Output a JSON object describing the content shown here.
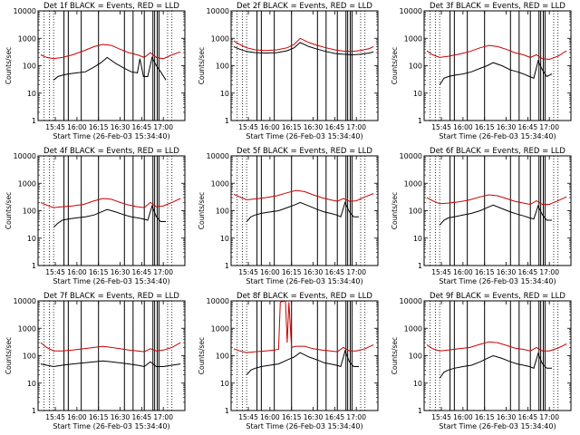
{
  "chart_data": [
    {
      "type": "line",
      "title": "Det 1f BLACK = Events, RED = LLD",
      "xlabel": "Start Time (26-Feb-03 15:34:40)",
      "ylabel": "Counts/sec",
      "yscale": "log",
      "ylim": [
        1,
        10000
      ],
      "yticks": [
        "1",
        "10",
        "100",
        "1000",
        "10000"
      ],
      "xticks": [
        "15:45",
        "16:00",
        "16:15",
        "16:30",
        "16:45",
        "17:00"
      ],
      "series": [
        {
          "color": "#000000",
          "x": [
            15.73,
            15.78,
            15.83,
            15.9,
            16.0,
            16.1,
            16.2,
            16.28,
            16.35,
            16.45,
            16.55,
            16.63,
            16.7,
            16.73,
            16.77,
            16.82,
            16.87,
            16.92,
            16.97,
            17.03
          ],
          "y": [
            30,
            40,
            45,
            50,
            55,
            60,
            90,
            130,
            200,
            120,
            80,
            60,
            55,
            180,
            40,
            40,
            200,
            100,
            60,
            30
          ]
        },
        {
          "color": "#cc0000",
          "x": [
            15.58,
            15.65,
            15.73,
            15.83,
            15.95,
            16.08,
            16.2,
            16.3,
            16.4,
            16.5,
            16.6,
            16.7,
            16.78,
            16.85,
            16.92,
            17.0,
            17.1,
            17.2
          ],
          "y": [
            250,
            200,
            180,
            200,
            250,
            350,
            500,
            600,
            550,
            400,
            300,
            250,
            200,
            300,
            200,
            180,
            250,
            320
          ]
        }
      ]
    },
    {
      "type": "line",
      "title": "Det 2f BLACK = Events, RED = LLD",
      "xlabel": "Start Time (26-Feb-03 15:34:40)",
      "ylabel": "Counts/sec",
      "yscale": "log",
      "ylim": [
        1,
        10000
      ],
      "yticks": [
        "1",
        "10",
        "100",
        "1000",
        "10000"
      ],
      "xticks": [
        "15:45",
        "16:00",
        "16:15",
        "16:30",
        "16:45",
        "17:00"
      ],
      "series": [
        {
          "color": "#000000",
          "x": [
            15.58,
            15.65,
            15.73,
            15.83,
            15.95,
            16.08,
            16.2,
            16.28,
            16.35,
            16.45,
            16.55,
            16.65,
            16.75,
            16.85,
            16.95,
            17.05,
            17.15,
            17.2
          ],
          "y": [
            500,
            400,
            330,
            300,
            290,
            300,
            350,
            450,
            700,
            500,
            400,
            330,
            280,
            260,
            250,
            260,
            290,
            320
          ]
        },
        {
          "color": "#cc0000",
          "x": [
            15.58,
            15.65,
            15.73,
            15.83,
            15.95,
            16.08,
            16.2,
            16.28,
            16.35,
            16.45,
            16.55,
            16.65,
            16.75,
            16.85,
            16.95,
            17.05,
            17.15,
            17.2
          ],
          "y": [
            800,
            600,
            450,
            380,
            360,
            380,
            450,
            600,
            1000,
            700,
            550,
            450,
            380,
            340,
            330,
            360,
            420,
            500
          ]
        }
      ]
    },
    {
      "type": "line",
      "title": "Det 3f BLACK = Events, RED = LLD",
      "xlabel": "Start Time (26-Feb-03 15:34:40)",
      "ylabel": "Counts/sec",
      "yscale": "log",
      "ylim": [
        1,
        10000
      ],
      "yticks": [
        "1",
        "10",
        "100",
        "1000",
        "10000"
      ],
      "xticks": [
        "15:45",
        "16:00",
        "16:15",
        "16:30",
        "16:45",
        "17:00"
      ],
      "series": [
        {
          "color": "#000000",
          "x": [
            15.73,
            15.78,
            15.83,
            15.9,
            16.0,
            16.1,
            16.2,
            16.28,
            16.35,
            16.45,
            16.55,
            16.63,
            16.7,
            16.77,
            16.82,
            16.87,
            16.92,
            16.97,
            17.03
          ],
          "y": [
            20,
            35,
            40,
            45,
            50,
            60,
            80,
            100,
            130,
            100,
            70,
            60,
            50,
            40,
            35,
            150,
            70,
            40,
            50
          ]
        },
        {
          "color": "#cc0000",
          "x": [
            15.58,
            15.65,
            15.73,
            15.83,
            15.95,
            16.08,
            16.2,
            16.3,
            16.4,
            16.5,
            16.6,
            16.7,
            16.78,
            16.85,
            16.92,
            17.0,
            17.1,
            17.2
          ],
          "y": [
            350,
            250,
            200,
            220,
            260,
            330,
            450,
            550,
            500,
            400,
            300,
            250,
            200,
            250,
            180,
            170,
            220,
            350
          ]
        }
      ]
    },
    {
      "type": "line",
      "title": "Det 4f BLACK = Events, RED = LLD",
      "xlabel": "Start Time (26-Feb-03 15:34:40)",
      "ylabel": "Counts/sec",
      "yscale": "log",
      "ylim": [
        1,
        10000
      ],
      "yticks": [
        "1",
        "10",
        "100",
        "1000",
        "10000"
      ],
      "xticks": [
        "15:45",
        "16:00",
        "16:15",
        "16:30",
        "16:45",
        "17:00"
      ],
      "series": [
        {
          "color": "#000000",
          "x": [
            15.73,
            15.78,
            15.83,
            15.9,
            16.0,
            16.1,
            16.2,
            16.28,
            16.35,
            16.45,
            16.55,
            16.63,
            16.7,
            16.77,
            16.82,
            16.87,
            16.92,
            16.97,
            17.03
          ],
          "y": [
            25,
            35,
            45,
            50,
            55,
            60,
            70,
            90,
            110,
            90,
            70,
            60,
            55,
            50,
            45,
            150,
            60,
            40,
            40
          ]
        },
        {
          "color": "#cc0000",
          "x": [
            15.58,
            15.65,
            15.73,
            15.83,
            15.95,
            16.08,
            16.2,
            16.3,
            16.4,
            16.5,
            16.6,
            16.7,
            16.78,
            16.85,
            16.92,
            17.0,
            17.1,
            17.2
          ],
          "y": [
            200,
            160,
            130,
            140,
            150,
            170,
            230,
            280,
            260,
            200,
            160,
            140,
            130,
            200,
            140,
            150,
            200,
            280
          ]
        }
      ]
    },
    {
      "type": "line",
      "title": "Det 5f BLACK = Events, RED = LLD",
      "xlabel": "Start Time (26-Feb-03 15:34:40)",
      "ylabel": "Counts/sec",
      "yscale": "log",
      "ylim": [
        1,
        10000
      ],
      "yticks": [
        "1",
        "10",
        "100",
        "1000",
        "10000"
      ],
      "xticks": [
        "15:45",
        "16:00",
        "16:15",
        "16:30",
        "16:45",
        "17:00"
      ],
      "series": [
        {
          "color": "#000000",
          "x": [
            15.73,
            15.78,
            15.83,
            15.9,
            16.0,
            16.1,
            16.2,
            16.28,
            16.35,
            16.45,
            16.55,
            16.63,
            16.7,
            16.77,
            16.82,
            16.87,
            16.92,
            16.97,
            17.03
          ],
          "y": [
            40,
            60,
            70,
            80,
            90,
            100,
            130,
            160,
            200,
            150,
            110,
            90,
            80,
            70,
            60,
            200,
            90,
            60,
            60
          ]
        },
        {
          "color": "#cc0000",
          "x": [
            15.58,
            15.65,
            15.73,
            15.83,
            15.95,
            16.08,
            16.2,
            16.3,
            16.4,
            16.5,
            16.6,
            16.7,
            16.78,
            16.85,
            16.92,
            17.0,
            17.1,
            17.2
          ],
          "y": [
            400,
            320,
            250,
            270,
            300,
            350,
            450,
            550,
            500,
            380,
            300,
            250,
            220,
            280,
            220,
            230,
            320,
            420
          ]
        }
      ]
    },
    {
      "type": "line",
      "title": "Det 6f BLACK = Events, RED = LLD",
      "xlabel": "Start Time (26-Feb-03 15:34:40)",
      "ylabel": "Counts/sec",
      "yscale": "log",
      "ylim": [
        1,
        10000
      ],
      "yticks": [
        "1",
        "10",
        "100",
        "1000",
        "10000"
      ],
      "xticks": [
        "15:45",
        "16:00",
        "16:15",
        "16:30",
        "16:45",
        "17:00"
      ],
      "series": [
        {
          "color": "#000000",
          "x": [
            15.73,
            15.78,
            15.83,
            15.9,
            16.0,
            16.1,
            16.2,
            16.28,
            16.35,
            16.45,
            16.55,
            16.63,
            16.7,
            16.77,
            16.82,
            16.87,
            16.92,
            16.97,
            17.03
          ],
          "y": [
            30,
            45,
            55,
            60,
            70,
            80,
            100,
            130,
            160,
            120,
            90,
            75,
            65,
            55,
            50,
            150,
            70,
            45,
            45
          ]
        },
        {
          "color": "#cc0000",
          "x": [
            15.58,
            15.65,
            15.73,
            15.83,
            15.95,
            16.08,
            16.2,
            16.3,
            16.4,
            16.5,
            16.6,
            16.7,
            16.78,
            16.85,
            16.92,
            17.0,
            17.1,
            17.2
          ],
          "y": [
            300,
            230,
            180,
            190,
            210,
            250,
            320,
            380,
            350,
            280,
            220,
            190,
            170,
            230,
            170,
            170,
            230,
            320
          ]
        }
      ]
    },
    {
      "type": "line",
      "title": "Det 7f BLACK = Events, RED = LLD",
      "xlabel": "Start Time (26-Feb-03 15:34:40)",
      "ylabel": "Counts/sec",
      "yscale": "log",
      "ylim": [
        1,
        10000
      ],
      "yticks": [
        "1",
        "10",
        "100",
        "1000",
        "10000"
      ],
      "xticks": [
        "15:45",
        "16:00",
        "16:15",
        "16:30",
        "16:45",
        "17:00"
      ],
      "series": [
        {
          "color": "#000000",
          "x": [
            15.58,
            15.65,
            15.73,
            15.83,
            15.95,
            16.08,
            16.2,
            16.3,
            16.4,
            16.5,
            16.6,
            16.7,
            16.78,
            16.85,
            16.92,
            17.0,
            17.1,
            17.2
          ],
          "y": [
            50,
            45,
            40,
            45,
            50,
            55,
            60,
            65,
            60,
            55,
            50,
            45,
            40,
            60,
            40,
            40,
            45,
            50
          ]
        },
        {
          "color": "#cc0000",
          "x": [
            15.58,
            15.65,
            15.73,
            15.83,
            15.95,
            16.08,
            16.2,
            16.3,
            16.4,
            16.5,
            16.6,
            16.7,
            16.78,
            16.85,
            16.92,
            17.0,
            17.1,
            17.2
          ],
          "y": [
            300,
            200,
            150,
            150,
            160,
            180,
            200,
            220,
            200,
            180,
            160,
            150,
            140,
            180,
            150,
            160,
            200,
            300
          ]
        }
      ]
    },
    {
      "type": "line",
      "title": "Det 8f BLACK = Events, RED = LLD",
      "xlabel": "Start Time (26-Feb-03 15:34:40)",
      "ylabel": "Counts/sec",
      "yscale": "log",
      "ylim": [
        1,
        10000
      ],
      "yticks": [
        "1",
        "10",
        "100",
        "1000",
        "10000"
      ],
      "xticks": [
        "15:45",
        "16:00",
        "16:15",
        "16:30",
        "16:45",
        "17:00"
      ],
      "series": [
        {
          "color": "#000000",
          "x": [
            15.73,
            15.78,
            15.83,
            15.9,
            16.0,
            16.1,
            16.2,
            16.28,
            16.35,
            16.45,
            16.55,
            16.63,
            16.7,
            16.77,
            16.82,
            16.87,
            16.92,
            16.97,
            17.03
          ],
          "y": [
            20,
            30,
            35,
            40,
            45,
            50,
            70,
            90,
            130,
            90,
            70,
            55,
            50,
            45,
            40,
            150,
            60,
            40,
            40
          ]
        },
        {
          "color": "#cc0000",
          "x": [
            15.58,
            15.65,
            15.73,
            15.83,
            15.95,
            16.05,
            16.1,
            16.12,
            16.15,
            16.18,
            16.2,
            16.22,
            16.25,
            16.3,
            16.4,
            16.5,
            16.6,
            16.7,
            16.78,
            16.85,
            16.92,
            17.0,
            17.1,
            17.2
          ],
          "y": [
            180,
            150,
            130,
            140,
            150,
            160,
            170,
            9000,
            9500,
            9800,
            300,
            9000,
            200,
            220,
            220,
            180,
            160,
            150,
            140,
            200,
            150,
            150,
            180,
            250
          ]
        }
      ]
    },
    {
      "type": "line",
      "title": "Det 9f BLACK = Events, RED = LLD",
      "xlabel": "Start Time (26-Feb-03 15:34:40)",
      "ylabel": "Counts/sec",
      "yscale": "log",
      "ylim": [
        1,
        10000
      ],
      "yticks": [
        "1",
        "10",
        "100",
        "1000",
        "10000"
      ],
      "xticks": [
        "15:45",
        "16:00",
        "16:15",
        "16:30",
        "16:45",
        "17:00"
      ],
      "series": [
        {
          "color": "#000000",
          "x": [
            15.73,
            15.78,
            15.83,
            15.9,
            16.0,
            16.1,
            16.2,
            16.28,
            16.35,
            16.45,
            16.55,
            16.63,
            16.7,
            16.77,
            16.82,
            16.87,
            16.92,
            16.97,
            17.03
          ],
          "y": [
            15,
            25,
            30,
            35,
            40,
            45,
            60,
            80,
            100,
            80,
            60,
            50,
            45,
            40,
            35,
            120,
            50,
            35,
            35
          ]
        },
        {
          "color": "#cc0000",
          "x": [
            15.58,
            15.65,
            15.73,
            15.83,
            15.95,
            16.08,
            16.2,
            16.3,
            16.4,
            16.5,
            16.6,
            16.7,
            16.78,
            16.85,
            16.92,
            17.0,
            17.1,
            17.2
          ],
          "y": [
            250,
            180,
            150,
            160,
            180,
            200,
            260,
            320,
            300,
            240,
            190,
            170,
            150,
            200,
            150,
            150,
            190,
            270
          ]
        }
      ]
    }
  ]
}
